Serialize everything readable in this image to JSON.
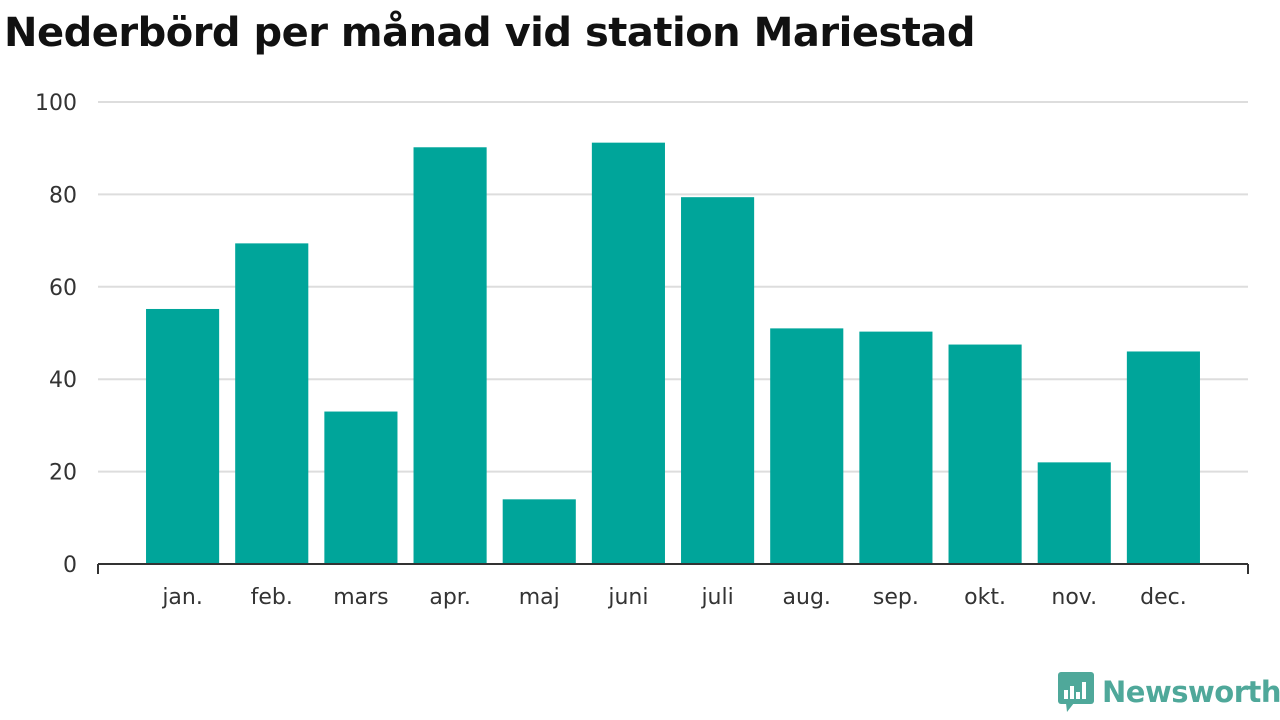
{
  "chart_data": {
    "type": "bar",
    "title": "Nederbörd per månad vid station Mariestad",
    "categories": [
      "jan.",
      "feb.",
      "mars",
      "apr.",
      "maj",
      "juni",
      "juli",
      "aug.",
      "sep.",
      "okt.",
      "nov.",
      "dec."
    ],
    "values": [
      55.2,
      69.4,
      33.0,
      90.2,
      14.0,
      91.2,
      79.4,
      51.0,
      50.3,
      47.5,
      22.0,
      46.0
    ],
    "xlabel": "",
    "ylabel": "",
    "ylim": [
      0,
      100
    ],
    "yticks": [
      0,
      20,
      40,
      60,
      80,
      100
    ],
    "grid": true,
    "bar_color": "#00a59a",
    "grid_color": "#dddddd",
    "axis_color": "#333333"
  },
  "brand": {
    "name": "Newsworthy",
    "icon": "newsworthy-logo-icon",
    "color": "#4fa89a"
  }
}
